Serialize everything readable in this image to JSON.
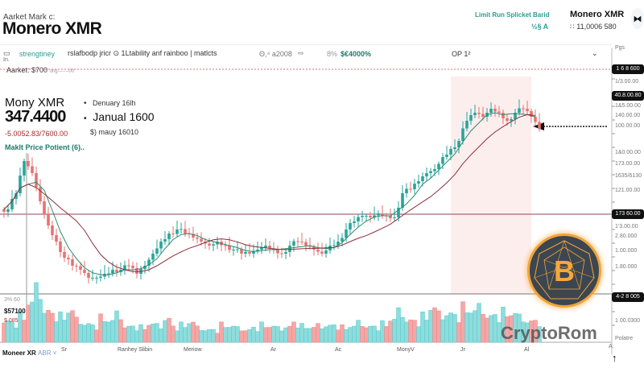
{
  "header": {
    "supertitle": "Aarket Mark c:",
    "title": "Monero XMR",
    "right_label": "Limit Run Splicket Barid",
    "right_name": "Monero XMR",
    "right_sub": "½§ A",
    "right_price": "∷ 11,0006 580",
    "right_button_icon": "bowtie-icon"
  },
  "toolbar": {
    "green_text": "strengtiney",
    "text": "rslafbodp jricr ⊙  1Ltability  anf  rainboo  |  matlcts",
    "mid": "Θ,⁴  a2008",
    "pct": "8%",
    "value": "$€4000%",
    "op": "OP 1²",
    "note": "In.",
    "market": "Aarket: $700",
    "market_tail": "ong-------00"
  },
  "info": {
    "name": "Mony XMR",
    "price": "347.4400",
    "change": "-5.0052.83/7600.00",
    "potential": "Maklt Price Potient (6)..",
    "date_label": "Denuary 16lh",
    "date_big": "Janual 1600",
    "date_small": "$) mauy 16010"
  },
  "volume_labels": [
    "3% 60",
    "$57100",
    "$ 085"
  ],
  "bottom_left": {
    "name": "Moneer XR",
    "sub": "ABR ˅"
  },
  "watermark": "CryptoRom",
  "y_axis": {
    "top": "Pgs",
    "labels": [
      "1/3.00.00",
      "1&5.00.00",
      "140.00.00",
      "100.00.00",
      "1&0.00.00",
      "173.00.00",
      "1635/6130",
      "121.00.00",
      "1'3.00.00",
      "2.80.000",
      "1.00.000",
      "1.80.000",
      "1 00.0300",
      "Polatre"
    ],
    "tags": [
      "1 6 8 600",
      "40.8.00.80",
      "173 60.00",
      "4-2 8 005"
    ],
    "bottom": "A."
  },
  "colors": {
    "up": "#26a69a",
    "down": "#e57373",
    "ma_fast": "#2f8a70",
    "ma_slow": "#8b2f3a",
    "vol_up": "#8fdcdc",
    "vol_down": "#f5a6a6"
  },
  "chart_data": {
    "type": "candlestick",
    "title": "Monero XMR",
    "x_tick_labels": [
      "Sr",
      "Ranhey Slibin",
      "Meriow",
      "Ar",
      "Ac",
      "MonyV",
      "Jr",
      "Al"
    ],
    "closes": [
      140,
      160,
      200,
      185,
      150,
      120,
      100,
      80,
      70,
      65,
      55,
      55,
      60,
      65,
      65,
      70,
      60,
      70,
      85,
      100,
      110,
      115,
      110,
      105,
      100,
      95,
      100,
      95,
      90,
      85,
      85,
      90,
      95,
      90,
      85,
      95,
      100,
      95,
      90,
      85,
      95,
      100,
      115,
      125,
      132,
      130,
      135,
      132,
      130,
      160,
      165,
      175,
      185,
      190,
      205,
      215,
      225,
      250,
      260,
      255,
      265,
      260,
      250,
      260,
      265,
      255,
      240
    ],
    "volumes": [
      40,
      35,
      45,
      70,
      95,
      60,
      50,
      45,
      55,
      40,
      35,
      30,
      42,
      38,
      50,
      30,
      28,
      26,
      32,
      30,
      45,
      28,
      30,
      35,
      26,
      24,
      22,
      30,
      28,
      25,
      24,
      26,
      30,
      28,
      25,
      30,
      35,
      28,
      26,
      30,
      32,
      30,
      26,
      28,
      35,
      30,
      28,
      32,
      40,
      55,
      42,
      38,
      45,
      60,
      50,
      55,
      48,
      60,
      55,
      62,
      50,
      48,
      52,
      50,
      45,
      40,
      38
    ]
  }
}
